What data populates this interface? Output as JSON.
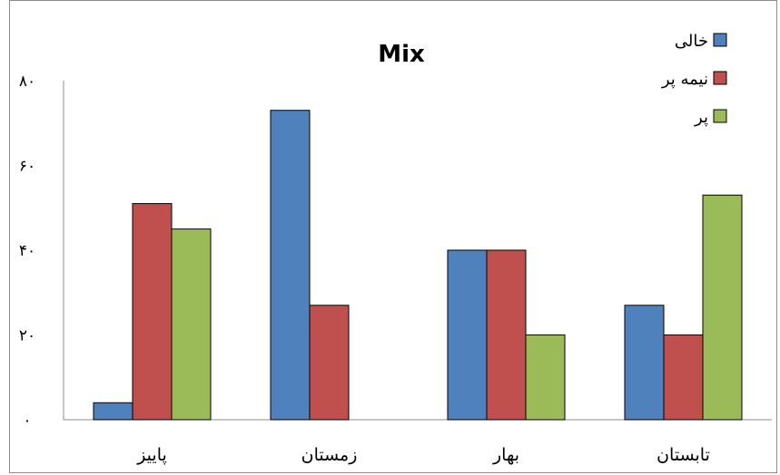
{
  "chart_data": {
    "type": "bar",
    "title": "Mix",
    "xlabel": "",
    "ylabel": "",
    "categories": [
      "پاییز",
      "زمستان",
      "بهار",
      "تابستان"
    ],
    "series": [
      {
        "name": "خالی",
        "color": "#4f81bd",
        "values": [
          4,
          73,
          40,
          27
        ]
      },
      {
        "name": "نیمه پر",
        "color": "#c0504d",
        "values": [
          51,
          27,
          40,
          20
        ]
      },
      {
        "name": "پر",
        "color": "#9bbb59",
        "values": [
          45,
          0,
          20,
          53
        ]
      }
    ],
    "ylim": [
      0,
      80
    ],
    "yticks": [
      0,
      20,
      40,
      60,
      80
    ],
    "ytick_labels": [
      "٠",
      "٢٠",
      "۴٠",
      "۶٠",
      "٨٠"
    ],
    "legend": "top-right",
    "grid": false
  }
}
